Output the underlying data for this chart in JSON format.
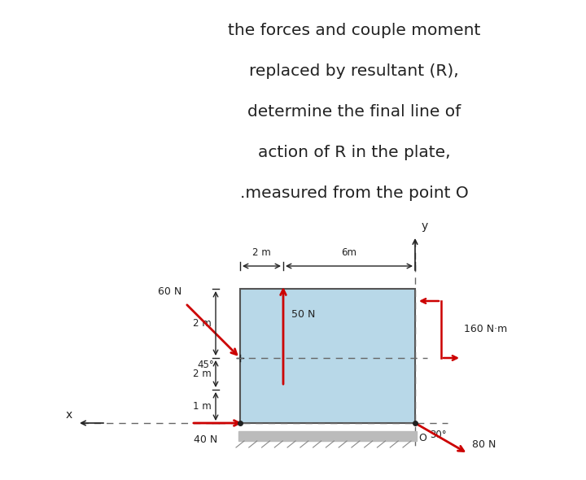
{
  "title_lines": [
    "the forces and couple moment",
    "replaced by resultant (R),",
    "determine the final line of",
    "action of R in the plate,",
    ".measured from the point O"
  ],
  "title_fontsize": 14.5,
  "bg_color": "#ffffff",
  "plate_color": "#b8d8e8",
  "plate_edge_color": "#555555",
  "red_color": "#cc0000",
  "dark_color": "#222222",
  "dashed_color": "#666666",
  "ground_color": "#bbbbbb"
}
